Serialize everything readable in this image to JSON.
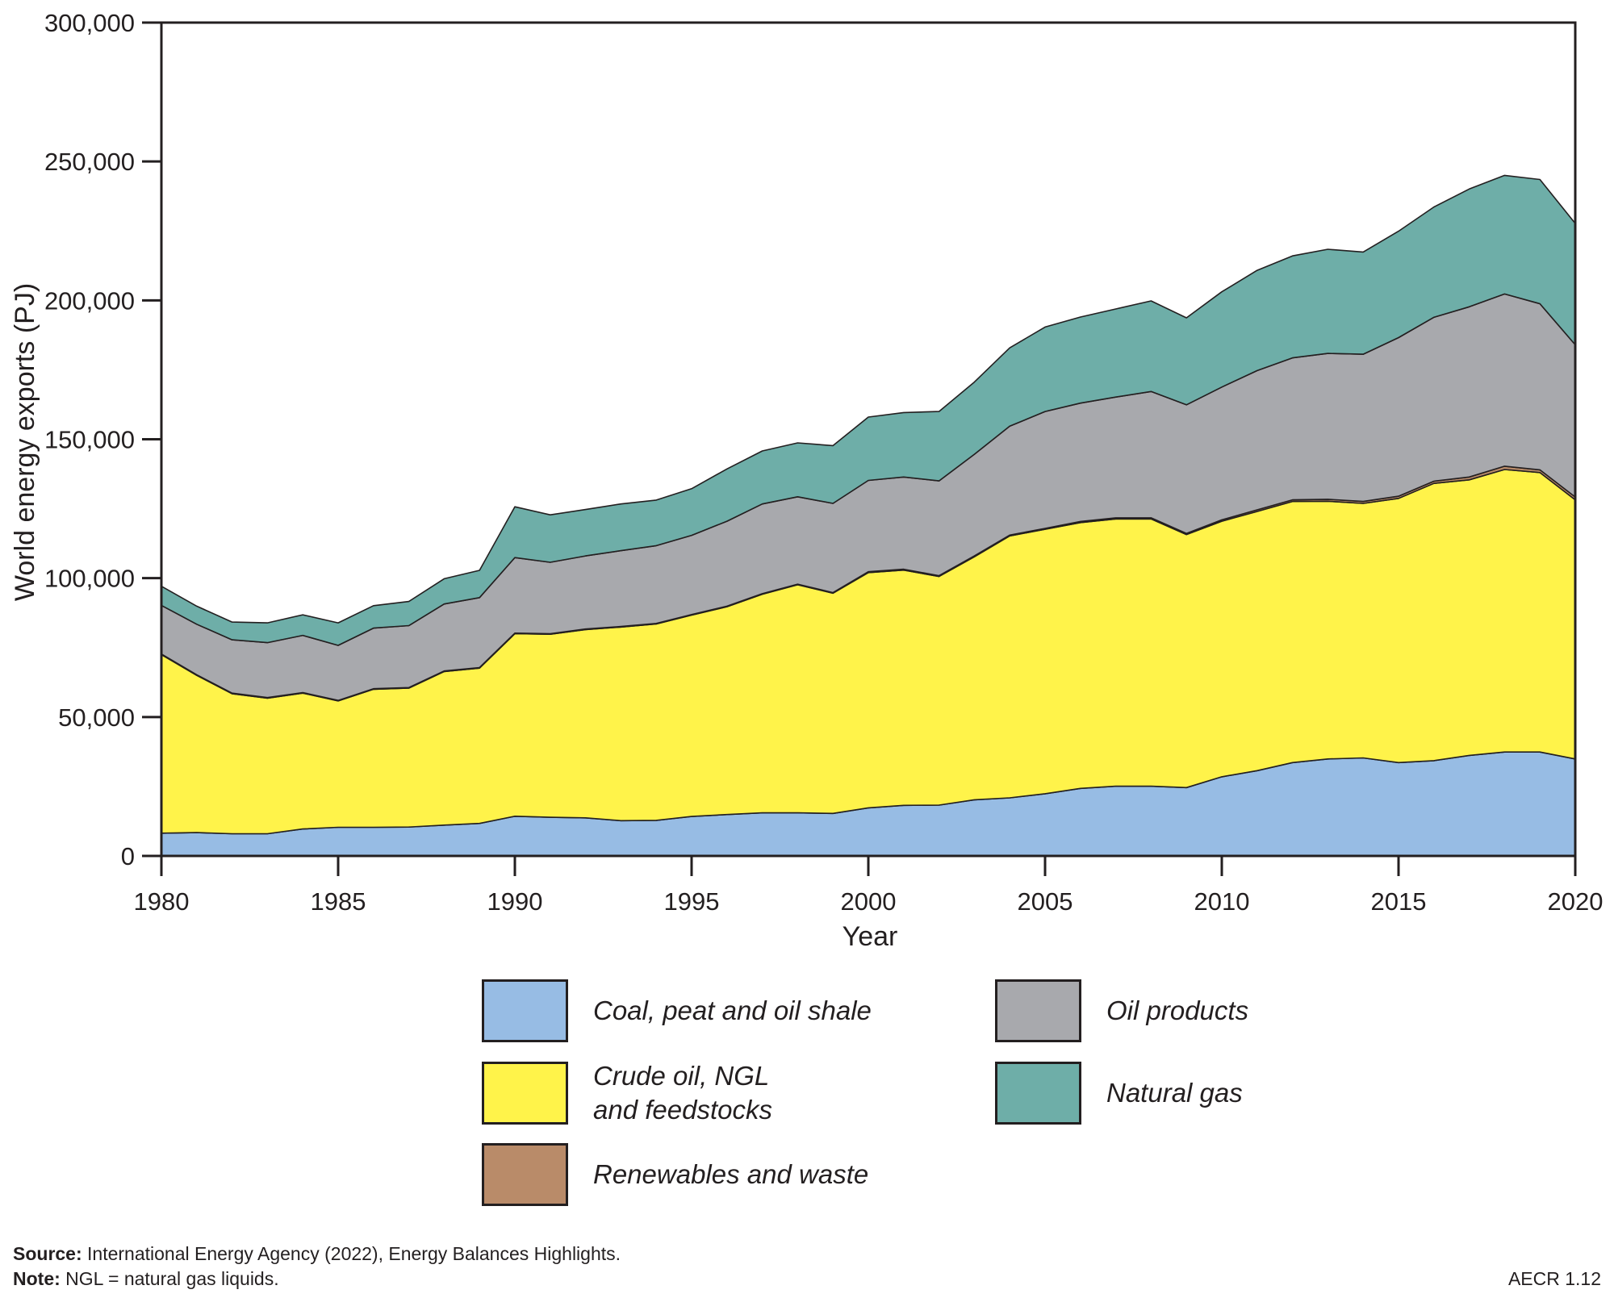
{
  "chart_data": {
    "type": "area",
    "stacked": true,
    "title": "",
    "xlabel": "Year",
    "ylabel": "World energy exports (PJ)",
    "xlim": [
      1980,
      2020
    ],
    "ylim": [
      0,
      300000
    ],
    "grid": false,
    "x": [
      1980,
      1981,
      1982,
      1983,
      1984,
      1985,
      1986,
      1987,
      1988,
      1989,
      1990,
      1991,
      1992,
      1993,
      1994,
      1995,
      1996,
      1997,
      1998,
      1999,
      2000,
      2001,
      2002,
      2003,
      2004,
      2005,
      2006,
      2007,
      2008,
      2009,
      2010,
      2011,
      2012,
      2013,
      2014,
      2015,
      2016,
      2017,
      2018,
      2019,
      2020
    ],
    "x_ticks": [
      "1980",
      "1985",
      "1990",
      "1995",
      "2000",
      "2005",
      "2010",
      "2015",
      "2020"
    ],
    "y_ticks": [
      "0",
      "50,000",
      "100,000",
      "150,000",
      "200,000",
      "250,000",
      "300,000"
    ],
    "legend_placement": "bottom",
    "series": [
      {
        "name": "Coal, peat and oil shale",
        "color": "#97bce4",
        "values": [
          8200,
          8400,
          8000,
          8000,
          9700,
          10300,
          10300,
          10400,
          11100,
          11700,
          14300,
          13900,
          13700,
          12700,
          12800,
          14200,
          14900,
          15500,
          15500,
          15300,
          17300,
          18200,
          18300,
          20200,
          20900,
          22400,
          24300,
          25100,
          25100,
          24600,
          28500,
          30700,
          33600,
          34900,
          35300,
          33600,
          34300,
          36200,
          37400,
          37400,
          34900
        ]
      },
      {
        "name": "Crude oil, NGL and feedstocks",
        "color": "#fff34a",
        "values": [
          64300,
          56600,
          50400,
          48800,
          48900,
          45500,
          49700,
          50000,
          55300,
          55900,
          65700,
          65900,
          67800,
          69700,
          70700,
          72500,
          74800,
          78700,
          82100,
          79300,
          84700,
          84700,
          82300,
          87500,
          94300,
          95200,
          95700,
          96200,
          96200,
          91100,
          92000,
          93300,
          94000,
          92800,
          91600,
          95100,
          99800,
          99200,
          101700,
          100600,
          93300
        ]
      },
      {
        "name": "Renewables and waste",
        "color": "#b98b69",
        "values": [
          200,
          200,
          200,
          200,
          200,
          200,
          200,
          200,
          200,
          200,
          200,
          200,
          200,
          200,
          200,
          200,
          200,
          200,
          200,
          200,
          300,
          300,
          300,
          300,
          300,
          300,
          400,
          400,
          400,
          400,
          500,
          600,
          600,
          700,
          700,
          800,
          800,
          1000,
          1200,
          1000,
          1000
        ]
      },
      {
        "name": "Oil products",
        "color": "#a8a9ad",
        "values": [
          17500,
          18200,
          19200,
          19800,
          20600,
          19800,
          21800,
          22300,
          24100,
          25200,
          27200,
          25700,
          26300,
          27300,
          28000,
          28500,
          30600,
          32300,
          31500,
          32100,
          32900,
          33200,
          34100,
          36600,
          39200,
          42100,
          42600,
          43500,
          45500,
          46300,
          47800,
          50100,
          51100,
          52500,
          53000,
          57100,
          59000,
          61300,
          62000,
          59800,
          54800
        ]
      },
      {
        "name": "Natural gas",
        "color": "#6eaea8",
        "values": [
          6900,
          6500,
          6400,
          7100,
          7400,
          8100,
          8100,
          8700,
          9100,
          9800,
          18300,
          17100,
          16700,
          16800,
          16400,
          16800,
          18800,
          19100,
          19400,
          20800,
          22800,
          23200,
          25000,
          26000,
          28200,
          30400,
          31000,
          31700,
          32600,
          31300,
          34300,
          36100,
          36700,
          37500,
          36800,
          38300,
          39700,
          42400,
          42700,
          44700,
          43700
        ]
      }
    ]
  },
  "legend": [
    {
      "label": "Coal, peat and oil shale",
      "color": "#97bce4"
    },
    {
      "label": "Crude oil, NGL\nand feedstocks",
      "color": "#fff34a"
    },
    {
      "label": "Renewables and waste",
      "color": "#b98b69"
    },
    {
      "label": "Oil products",
      "color": "#a8a9ad"
    },
    {
      "label": "Natural gas",
      "color": "#6eaea8"
    }
  ],
  "footer": {
    "source_label": "Source:",
    "source_text": " International Energy Agency (2022), Energy Balances Highlights.",
    "note_label": "Note:",
    "note_text": " NGL = natural gas liquids.",
    "figure_id": "AECR 1.12"
  }
}
